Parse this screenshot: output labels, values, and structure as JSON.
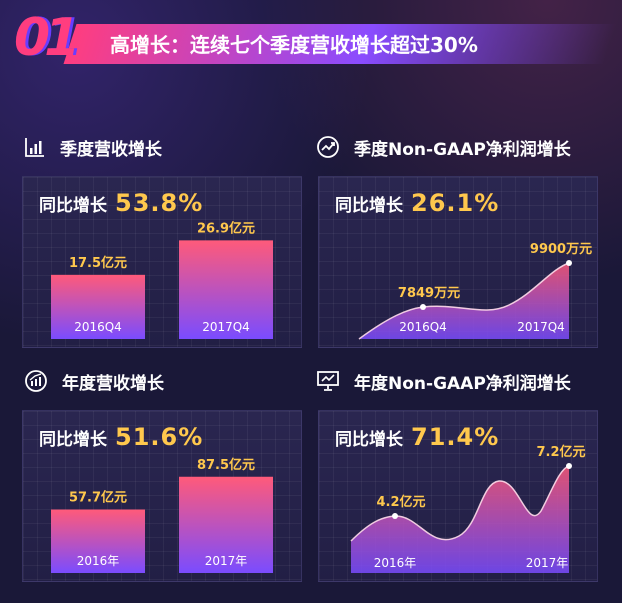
{
  "banner": {
    "badge": "01",
    "title": "高增长：连续七个季度营收增长超过30%"
  },
  "colors": {
    "background": "#1a1838",
    "panel": "#2a2650",
    "accent_value": "#ffc84d",
    "gradient_top": "#ff5a7a",
    "gradient_bottom": "#7a4cff"
  },
  "panels": [
    {
      "title": "季度营收增长",
      "icon": "bar-chart-icon",
      "growth_label": "同比增长",
      "growth_value": "53.8%"
    },
    {
      "title": "季度Non-GAAP净利润增长",
      "icon": "trend-line-icon",
      "growth_label": "同比增长",
      "growth_value": "26.1%"
    },
    {
      "title": "年度营收增长",
      "icon": "growth-chart-icon",
      "growth_label": "同比增长",
      "growth_value": "51.6%"
    },
    {
      "title": "年度Non-GAAP净利润增长",
      "icon": "presentation-chart-icon",
      "growth_label": "同比增长",
      "growth_value": "71.4%"
    }
  ],
  "chart_data": [
    {
      "type": "bar",
      "categories": [
        "2016Q4",
        "2017Q4"
      ],
      "values": [
        17.5,
        26.9
      ],
      "data_labels": [
        "17.5亿元",
        "26.9亿元"
      ],
      "ylim": [
        0,
        30
      ]
    },
    {
      "type": "area",
      "categories": [
        "2016Q4",
        "2017Q4"
      ],
      "values": [
        7849,
        9900
      ],
      "data_labels": [
        "7849万元",
        "9900万元"
      ]
    },
    {
      "type": "bar",
      "categories": [
        "2016年",
        "2017年"
      ],
      "values": [
        57.7,
        87.5
      ],
      "data_labels": [
        "57.7亿元",
        "87.5亿元"
      ],
      "ylim": [
        0,
        100
      ]
    },
    {
      "type": "area",
      "categories": [
        "2016年",
        "2017年"
      ],
      "values": [
        4.2,
        7.2
      ],
      "data_labels": [
        "4.2亿元",
        "7.2亿元"
      ]
    }
  ]
}
